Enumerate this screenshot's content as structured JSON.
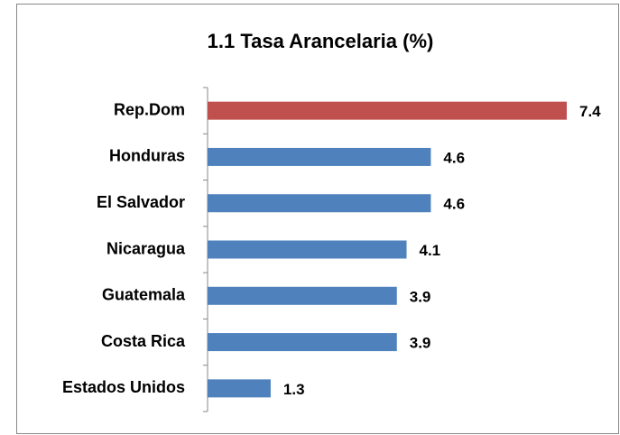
{
  "chart_data": {
    "type": "bar",
    "orientation": "horizontal",
    "title": "1.1 Tasa Arancelaria (%)",
    "categories": [
      "Rep.Dom",
      "Honduras",
      "El Salvador",
      "Nicaragua",
      "Guatemala",
      "Costa Rica",
      "Estados Unidos"
    ],
    "values": [
      7.4,
      4.6,
      4.6,
      4.1,
      3.9,
      3.9,
      1.3
    ],
    "colors": [
      "#c0504d",
      "#4f81bd",
      "#4f81bd",
      "#4f81bd",
      "#4f81bd",
      "#4f81bd",
      "#4f81bd"
    ]
  }
}
